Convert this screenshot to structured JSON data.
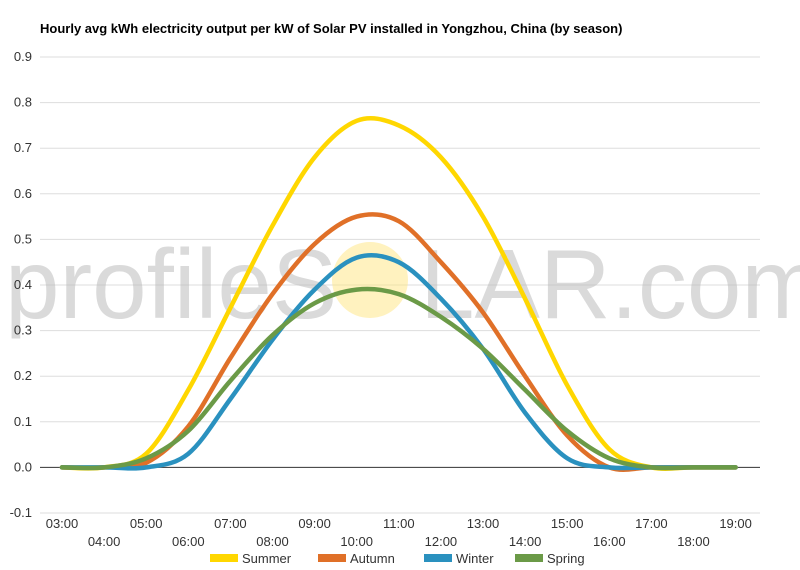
{
  "chart_data": {
    "type": "line",
    "title": "Hourly avg kWh electricity output per kW of Solar PV installed in Yongzhou, China (by season)",
    "x": [
      "03:00",
      "04:00",
      "05:00",
      "06:00",
      "07:00",
      "08:00",
      "09:00",
      "10:00",
      "11:00",
      "12:00",
      "13:00",
      "14:00",
      "15:00",
      "16:00",
      "17:00",
      "18:00",
      "19:00"
    ],
    "xlabel": "",
    "ylabel": "",
    "ylim": [
      -0.1,
      0.9
    ],
    "yticks": [
      "-0.1",
      "0.0",
      "0.1",
      "0.2",
      "0.3",
      "0.4",
      "0.5",
      "0.6",
      "0.7",
      "0.8",
      "0.9"
    ],
    "grid": true,
    "legend_position": "bottom",
    "series": [
      {
        "name": "Summer",
        "color": "#FFD700",
        "values": [
          0.0,
          0.0,
          0.03,
          0.17,
          0.35,
          0.53,
          0.68,
          0.76,
          0.75,
          0.68,
          0.55,
          0.37,
          0.18,
          0.04,
          0.0,
          0.0,
          0.0
        ]
      },
      {
        "name": "Autumn",
        "color": "#E07028",
        "values": [
          0.0,
          0.0,
          0.01,
          0.09,
          0.24,
          0.38,
          0.49,
          0.55,
          0.54,
          0.45,
          0.34,
          0.2,
          0.07,
          0.0,
          0.0,
          0.0,
          0.0
        ]
      },
      {
        "name": "Winter",
        "color": "#2A91BF",
        "values": [
          0.0,
          0.0,
          0.0,
          0.03,
          0.15,
          0.28,
          0.39,
          0.46,
          0.45,
          0.37,
          0.26,
          0.12,
          0.02,
          0.0,
          0.0,
          0.0,
          0.0
        ]
      },
      {
        "name": "Spring",
        "color": "#6B9A47",
        "values": [
          0.0,
          0.0,
          0.02,
          0.08,
          0.19,
          0.29,
          0.36,
          0.39,
          0.38,
          0.33,
          0.26,
          0.17,
          0.08,
          0.02,
          0.0,
          0.0,
          0.0
        ]
      }
    ]
  },
  "watermark": {
    "text_left": "profileS",
    "text_right": "LAR.com",
    "sun_color": "#FFE680"
  }
}
